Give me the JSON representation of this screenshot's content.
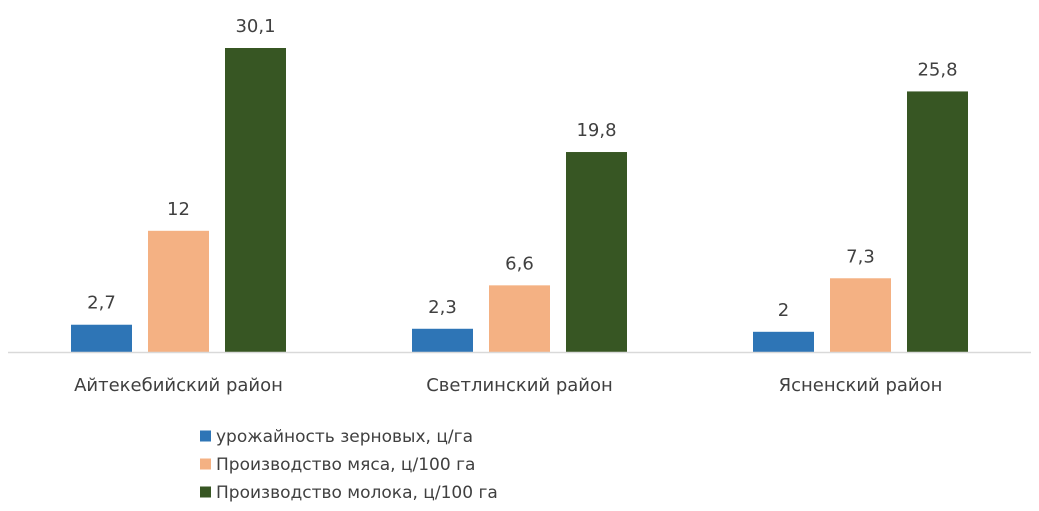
{
  "chart_data": {
    "type": "bar",
    "categories": [
      "Айтекебийский район",
      "Светлинский район",
      "Ясненский район"
    ],
    "series": [
      {
        "name": "урожайность зерновых, ц/га",
        "values": [
          2.7,
          2.3,
          2
        ],
        "labels": [
          "2,7",
          "2,3",
          "2"
        ],
        "color": "#2e75b6"
      },
      {
        "name": "Производство мяса, ц/100 га",
        "values": [
          12,
          6.6,
          7.3
        ],
        "labels": [
          "12",
          "6,6",
          "7,3"
        ],
        "color": "#f4b183"
      },
      {
        "name": "Производство молока, ц/100 га",
        "values": [
          30.1,
          19.8,
          25.8
        ],
        "labels": [
          "30,1",
          "19,8",
          "25,8"
        ],
        "color": "#375623"
      }
    ],
    "ylim": [
      0,
      30.1
    ],
    "grid": false,
    "legend_position": "bottom"
  }
}
